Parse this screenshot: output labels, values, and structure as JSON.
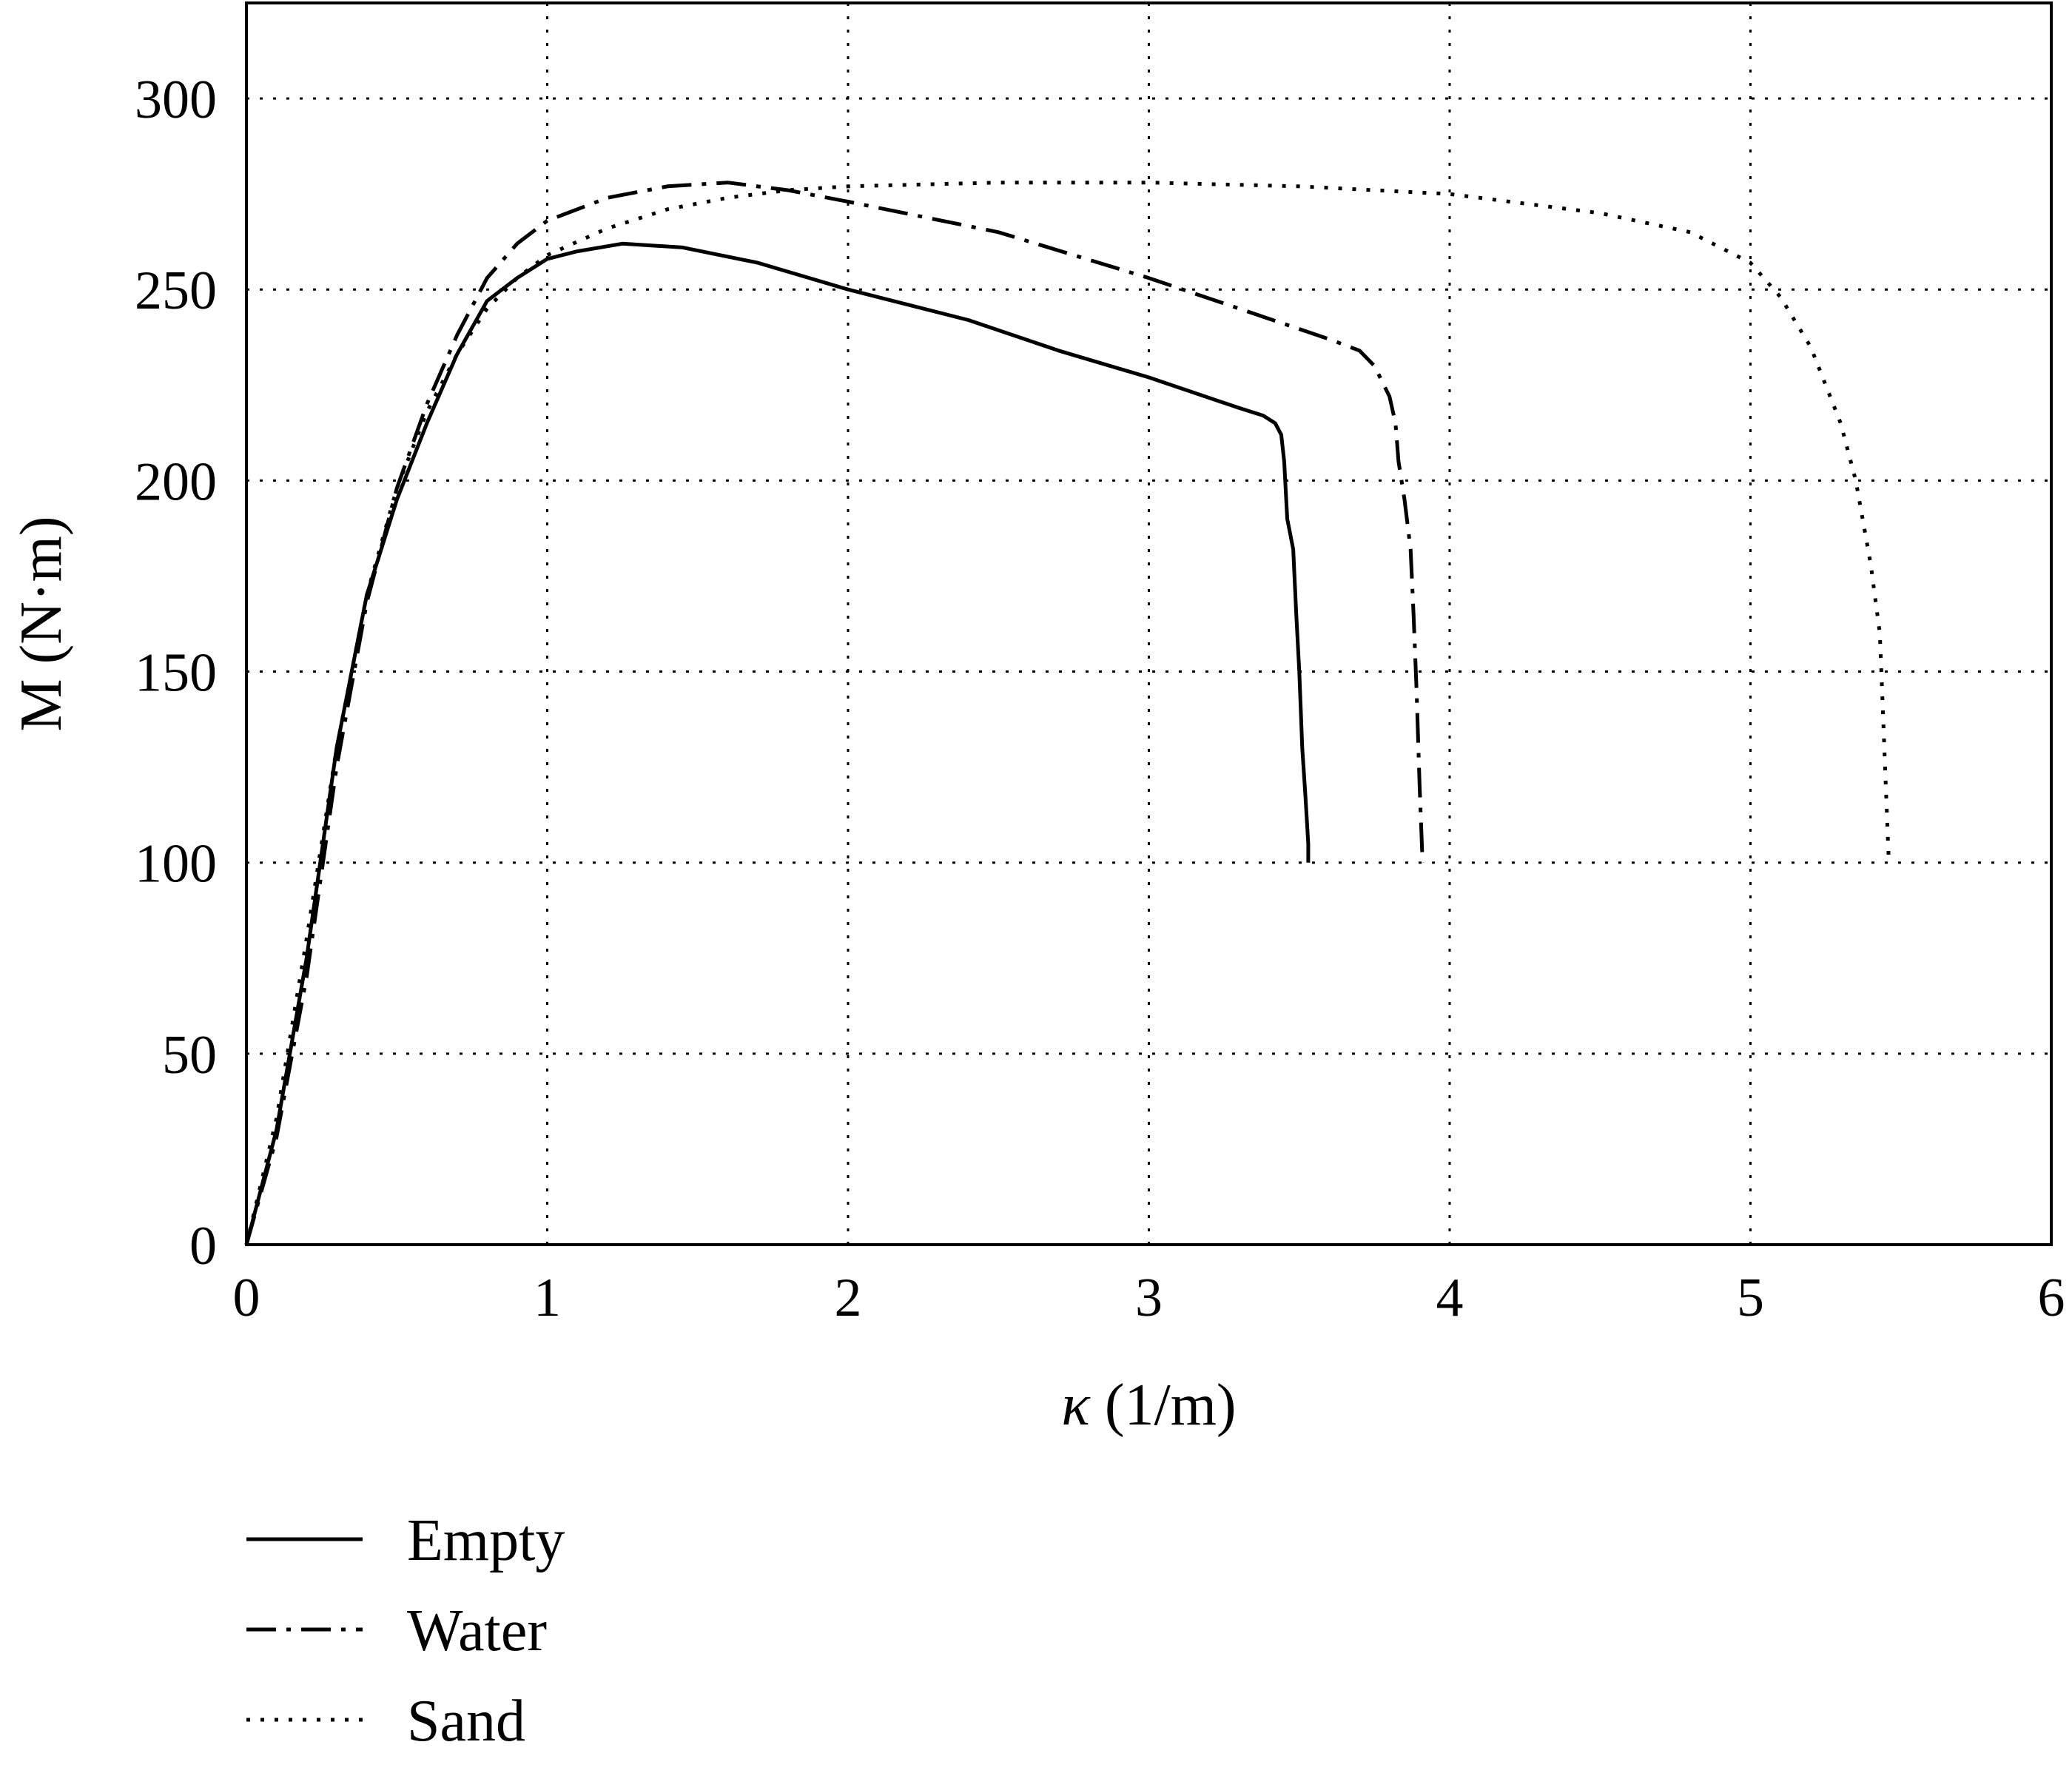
{
  "chart_data": {
    "type": "line",
    "title": "",
    "xlabel_symbol": "κ",
    "xlabel_unit": " (1/m)",
    "ylabel": "M (N·m)",
    "xlim": [
      0,
      6
    ],
    "ylim": [
      0,
      325
    ],
    "xticks": [
      0,
      1,
      2,
      3,
      4,
      5,
      6
    ],
    "yticks": [
      0,
      50,
      100,
      150,
      200,
      250,
      300
    ],
    "grid": true,
    "legend_position": "below",
    "series": [
      {
        "name": "Empty",
        "style": "solid",
        "points": [
          [
            0,
            0
          ],
          [
            0.1,
            30
          ],
          [
            0.2,
            75
          ],
          [
            0.3,
            130
          ],
          [
            0.4,
            170
          ],
          [
            0.5,
            195
          ],
          [
            0.6,
            215
          ],
          [
            0.7,
            233
          ],
          [
            0.8,
            247
          ],
          [
            0.9,
            253
          ],
          [
            1.0,
            258
          ],
          [
            1.1,
            260
          ],
          [
            1.25,
            262
          ],
          [
            1.45,
            261
          ],
          [
            1.7,
            257
          ],
          [
            2.0,
            250
          ],
          [
            2.1,
            248
          ],
          [
            2.4,
            242
          ],
          [
            2.7,
            234
          ],
          [
            3.0,
            227
          ],
          [
            3.3,
            219
          ],
          [
            3.38,
            217
          ],
          [
            3.42,
            215
          ],
          [
            3.44,
            212
          ],
          [
            3.45,
            205
          ],
          [
            3.46,
            190
          ],
          [
            3.48,
            182
          ],
          [
            3.49,
            165
          ],
          [
            3.5,
            150
          ],
          [
            3.51,
            130
          ],
          [
            3.52,
            118
          ],
          [
            3.53,
            105
          ],
          [
            3.53,
            100
          ]
        ]
      },
      {
        "name": "Water",
        "style": "dashdot",
        "points": [
          [
            0,
            0
          ],
          [
            0.1,
            28
          ],
          [
            0.2,
            70
          ],
          [
            0.3,
            125
          ],
          [
            0.4,
            168
          ],
          [
            0.5,
            198
          ],
          [
            0.6,
            220
          ],
          [
            0.7,
            238
          ],
          [
            0.8,
            253
          ],
          [
            0.9,
            262
          ],
          [
            1.0,
            268
          ],
          [
            1.2,
            274
          ],
          [
            1.4,
            277
          ],
          [
            1.6,
            278
          ],
          [
            1.8,
            276
          ],
          [
            2.0,
            273
          ],
          [
            2.5,
            265
          ],
          [
            3.0,
            253
          ],
          [
            3.3,
            245
          ],
          [
            3.6,
            237
          ],
          [
            3.7,
            234
          ],
          [
            3.75,
            230
          ],
          [
            3.8,
            222
          ],
          [
            3.82,
            215
          ],
          [
            3.83,
            205
          ],
          [
            3.85,
            195
          ],
          [
            3.87,
            182
          ],
          [
            3.88,
            165
          ],
          [
            3.89,
            145
          ],
          [
            3.9,
            120
          ],
          [
            3.91,
            100
          ]
        ]
      },
      {
        "name": "Sand",
        "style": "dotted",
        "points": [
          [
            0,
            0
          ],
          [
            0.1,
            33
          ],
          [
            0.2,
            80
          ],
          [
            0.3,
            130
          ],
          [
            0.4,
            170
          ],
          [
            0.5,
            198
          ],
          [
            0.6,
            218
          ],
          [
            0.7,
            233
          ],
          [
            0.8,
            245
          ],
          [
            0.9,
            253
          ],
          [
            1.0,
            259
          ],
          [
            1.2,
            266
          ],
          [
            1.4,
            271
          ],
          [
            1.6,
            274
          ],
          [
            1.8,
            276
          ],
          [
            2.0,
            277
          ],
          [
            2.5,
            278
          ],
          [
            3.0,
            278
          ],
          [
            3.5,
            277
          ],
          [
            4.0,
            275
          ],
          [
            4.5,
            270
          ],
          [
            4.8,
            265
          ],
          [
            5.0,
            257
          ],
          [
            5.1,
            248
          ],
          [
            5.2,
            235
          ],
          [
            5.3,
            215
          ],
          [
            5.35,
            200
          ],
          [
            5.4,
            178
          ],
          [
            5.43,
            160
          ],
          [
            5.44,
            140
          ],
          [
            5.45,
            120
          ],
          [
            5.46,
            100
          ]
        ]
      }
    ]
  }
}
